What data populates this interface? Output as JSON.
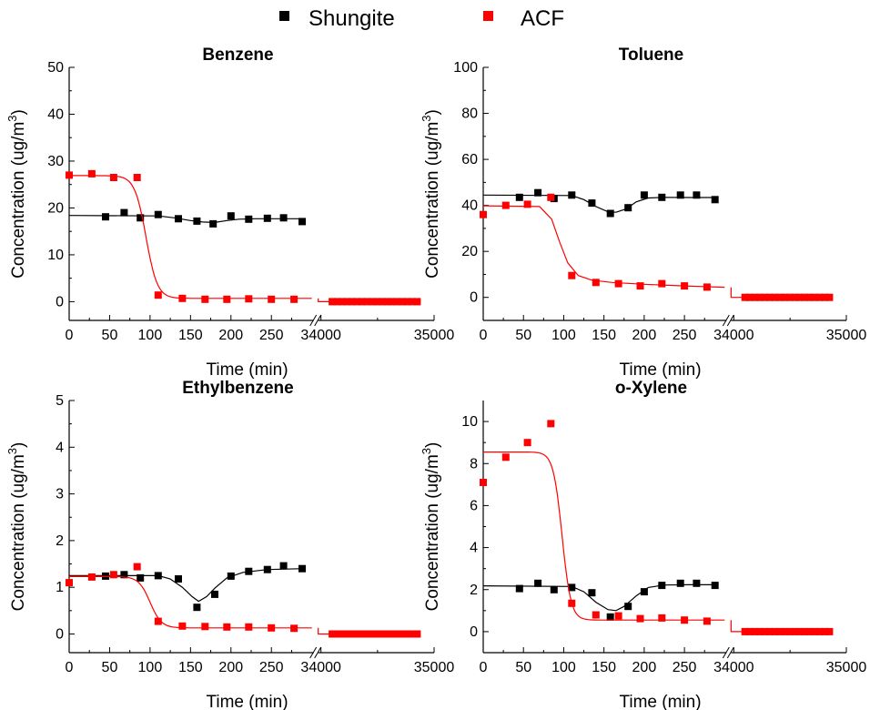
{
  "legend": [
    {
      "label": "Shungite",
      "color": "#000000"
    },
    {
      "label": "ACF",
      "color": "#ff0000"
    }
  ],
  "chart_data": [
    {
      "type": "scatter",
      "title": "Benzene",
      "xlabel": "Time (min)",
      "ylabel": "Concentration (ug/m",
      "ylabel_sup": "3",
      "ylabel_end": ")",
      "x_break": {
        "left_range": [
          0,
          300
        ],
        "right_range": [
          34000,
          35000
        ]
      },
      "xticks_left": [
        "0",
        "50",
        "100",
        "150",
        "200",
        "250"
      ],
      "xticks_right": [
        "34000",
        "35000"
      ],
      "ylim": [
        -4,
        50
      ],
      "yticks": [
        "0",
        "10",
        "20",
        "30",
        "40",
        "50"
      ],
      "series": [
        {
          "name": "Shungite",
          "color": "#000000",
          "points": [
            [
              45,
              18.1
            ],
            [
              68,
              19.0
            ],
            [
              88,
              17.9
            ],
            [
              110,
              18.6
            ],
            [
              135,
              17.7
            ],
            [
              158,
              17.2
            ],
            [
              178,
              16.6
            ],
            [
              200,
              18.3
            ],
            [
              222,
              17.6
            ],
            [
              245,
              17.8
            ],
            [
              265,
              17.9
            ],
            [
              288,
              17.1
            ]
          ],
          "fit": [
            [
              0,
              18.4
            ],
            [
              110,
              18.3
            ],
            [
              130,
              17.9
            ],
            [
              150,
              17.3
            ],
            [
              165,
              17.0
            ],
            [
              180,
              16.9
            ],
            [
              195,
              17.3
            ],
            [
              210,
              17.6
            ],
            [
              230,
              17.7
            ],
            [
              260,
              17.7
            ],
            [
              290,
              17.7
            ]
          ]
        },
        {
          "name": "ACF",
          "color": "#ff0000",
          "points": [
            [
              0,
              27.0
            ],
            [
              28,
              27.3
            ],
            [
              55,
              26.5
            ],
            [
              84,
              26.5
            ],
            [
              110,
              1.4
            ],
            [
              140,
              0.7
            ],
            [
              168,
              0.5
            ],
            [
              195,
              0.5
            ],
            [
              222,
              0.6
            ],
            [
              250,
              0.5
            ],
            [
              278,
              0.5
            ]
          ],
          "points_right": {
            "from": 34100,
            "to": 34850,
            "value": 0
          },
          "fit": {
            "A1": 26.9,
            "A2": 0.7,
            "x0": 95,
            "dx": 7,
            "x_end": 300,
            "right_value": 0
          }
        }
      ]
    },
    {
      "type": "scatter",
      "title": "Toluene",
      "xlabel": "Time (min)",
      "ylabel": "Concentration (ug/m",
      "ylabel_sup": "3",
      "ylabel_end": ")",
      "x_break": {
        "left_range": [
          0,
          300
        ],
        "right_range": [
          34000,
          35000
        ]
      },
      "xticks_left": [
        "0",
        "50",
        "100",
        "150",
        "200",
        "250"
      ],
      "xticks_right": [
        "34000",
        "35000"
      ],
      "ylim": [
        -10,
        100
      ],
      "yticks": [
        "0",
        "20",
        "40",
        "60",
        "80",
        "100"
      ],
      "series": [
        {
          "name": "Shungite",
          "color": "#000000",
          "points": [
            [
              45,
              43.5
            ],
            [
              68,
              45.5
            ],
            [
              88,
              43.0
            ],
            [
              110,
              44.5
            ],
            [
              135,
              41.0
            ],
            [
              158,
              36.5
            ],
            [
              180,
              39.0
            ],
            [
              200,
              44.5
            ],
            [
              222,
              43.5
            ],
            [
              245,
              44.5
            ],
            [
              265,
              44.5
            ],
            [
              288,
              42.5
            ]
          ],
          "fit": [
            [
              0,
              44.5
            ],
            [
              110,
              44.3
            ],
            [
              125,
              42.5
            ],
            [
              140,
              39.5
            ],
            [
              155,
              37.2
            ],
            [
              165,
              37.0
            ],
            [
              178,
              38.5
            ],
            [
              190,
              41.5
            ],
            [
              205,
              43.2
            ],
            [
              225,
              43.5
            ],
            [
              260,
              43.4
            ],
            [
              290,
              43.4
            ]
          ]
        },
        {
          "name": "ACF",
          "color": "#ff0000",
          "points": [
            [
              0,
              36.0
            ],
            [
              28,
              40.0
            ],
            [
              55,
              40.5
            ],
            [
              84,
              43.5
            ],
            [
              110,
              9.5
            ],
            [
              140,
              6.5
            ],
            [
              168,
              6.0
            ],
            [
              195,
              5.0
            ],
            [
              222,
              6.0
            ],
            [
              250,
              5.0
            ],
            [
              278,
              4.5
            ]
          ],
          "points_right": {
            "from": 34100,
            "to": 34850,
            "value": 0
          },
          "fit_curve": [
            [
              0,
              39.8
            ],
            [
              70,
              39.5
            ],
            [
              85,
              34.0
            ],
            [
              95,
              24.0
            ],
            [
              105,
              15.0
            ],
            [
              118,
              9.5
            ],
            [
              135,
              7.5
            ],
            [
              160,
              6.5
            ],
            [
              200,
              5.7
            ],
            [
              250,
              5.0
            ],
            [
              300,
              4.4
            ]
          ],
          "right_value": 0
        }
      ]
    },
    {
      "type": "scatter",
      "title": "Ethylbenzene",
      "xlabel": "Time (min)",
      "ylabel": "Concentration (ug/m",
      "ylabel_sup": "3",
      "ylabel_end": ")",
      "x_break": {
        "left_range": [
          0,
          300
        ],
        "right_range": [
          34000,
          35000
        ]
      },
      "xticks_left": [
        "0",
        "50",
        "100",
        "150",
        "200",
        "250"
      ],
      "xticks_right": [
        "34000",
        "35000"
      ],
      "ylim": [
        -0.4,
        5
      ],
      "yticks": [
        "0",
        "1",
        "2",
        "3",
        "4",
        "5"
      ],
      "series": [
        {
          "name": "Shungite",
          "color": "#000000",
          "points": [
            [
              45,
              1.24
            ],
            [
              68,
              1.27
            ],
            [
              88,
              1.2
            ],
            [
              110,
              1.25
            ],
            [
              135,
              1.18
            ],
            [
              158,
              0.57
            ],
            [
              180,
              0.85
            ],
            [
              200,
              1.24
            ],
            [
              222,
              1.34
            ],
            [
              245,
              1.38
            ],
            [
              265,
              1.46
            ],
            [
              288,
              1.4
            ]
          ],
          "fit": [
            [
              0,
              1.25
            ],
            [
              110,
              1.25
            ],
            [
              125,
              1.18
            ],
            [
              140,
              1.0
            ],
            [
              152,
              0.8
            ],
            [
              160,
              0.7
            ],
            [
              170,
              0.8
            ],
            [
              180,
              0.98
            ],
            [
              195,
              1.2
            ],
            [
              215,
              1.32
            ],
            [
              245,
              1.38
            ],
            [
              290,
              1.4
            ]
          ]
        },
        {
          "name": "ACF",
          "color": "#ff0000",
          "points": [
            [
              0,
              1.1
            ],
            [
              28,
              1.22
            ],
            [
              55,
              1.27
            ],
            [
              84,
              1.44
            ],
            [
              110,
              0.27
            ],
            [
              140,
              0.17
            ],
            [
              168,
              0.16
            ],
            [
              195,
              0.15
            ],
            [
              222,
              0.15
            ],
            [
              250,
              0.13
            ],
            [
              278,
              0.12
            ]
          ],
          "points_right": {
            "from": 34100,
            "to": 34850,
            "value": 0
          },
          "fit": {
            "A1": 1.23,
            "A2": 0.13,
            "x0": 100,
            "dx": 7,
            "x_end": 300,
            "right_value": 0
          }
        }
      ]
    },
    {
      "type": "scatter",
      "title": "o-Xylene",
      "xlabel": "Time (min)",
      "ylabel": "Concentration (ug/m",
      "ylabel_sup": "3",
      "ylabel_end": ")",
      "x_break": {
        "left_range": [
          0,
          300
        ],
        "right_range": [
          34000,
          35000
        ]
      },
      "xticks_left": [
        "0",
        "50",
        "100",
        "150",
        "200",
        "250"
      ],
      "xticks_right": [
        "34000",
        "35000"
      ],
      "ylim": [
        -1,
        11
      ],
      "yticks": [
        "0",
        "2",
        "4",
        "6",
        "8",
        "10"
      ],
      "series": [
        {
          "name": "Shungite",
          "color": "#000000",
          "points": [
            [
              45,
              2.05
            ],
            [
              68,
              2.3
            ],
            [
              88,
              2.0
            ],
            [
              110,
              2.1
            ],
            [
              135,
              1.85
            ],
            [
              158,
              0.7
            ],
            [
              180,
              1.2
            ],
            [
              200,
              1.9
            ],
            [
              222,
              2.2
            ],
            [
              245,
              2.3
            ],
            [
              265,
              2.3
            ],
            [
              288,
              2.2
            ]
          ],
          "fit": [
            [
              0,
              2.18
            ],
            [
              110,
              2.15
            ],
            [
              125,
              1.9
            ],
            [
              140,
              1.4
            ],
            [
              155,
              1.05
            ],
            [
              165,
              1.0
            ],
            [
              175,
              1.2
            ],
            [
              190,
              1.7
            ],
            [
              205,
              2.1
            ],
            [
              225,
              2.22
            ],
            [
              255,
              2.23
            ],
            [
              290,
              2.23
            ]
          ]
        },
        {
          "name": "ACF",
          "color": "#ff0000",
          "points": [
            [
              0,
              7.1
            ],
            [
              28,
              8.3
            ],
            [
              55,
              9.0
            ],
            [
              84,
              9.9
            ],
            [
              110,
              1.35
            ],
            [
              140,
              0.8
            ],
            [
              168,
              0.75
            ],
            [
              195,
              0.62
            ],
            [
              222,
              0.65
            ],
            [
              250,
              0.55
            ],
            [
              278,
              0.5
            ]
          ],
          "points_right": {
            "from": 34100,
            "to": 34850,
            "value": 0
          },
          "fit": {
            "A1": 8.55,
            "A2": 0.55,
            "x0": 98,
            "dx": 5.5,
            "x_end": 300,
            "right_value": 0
          }
        }
      ]
    }
  ]
}
